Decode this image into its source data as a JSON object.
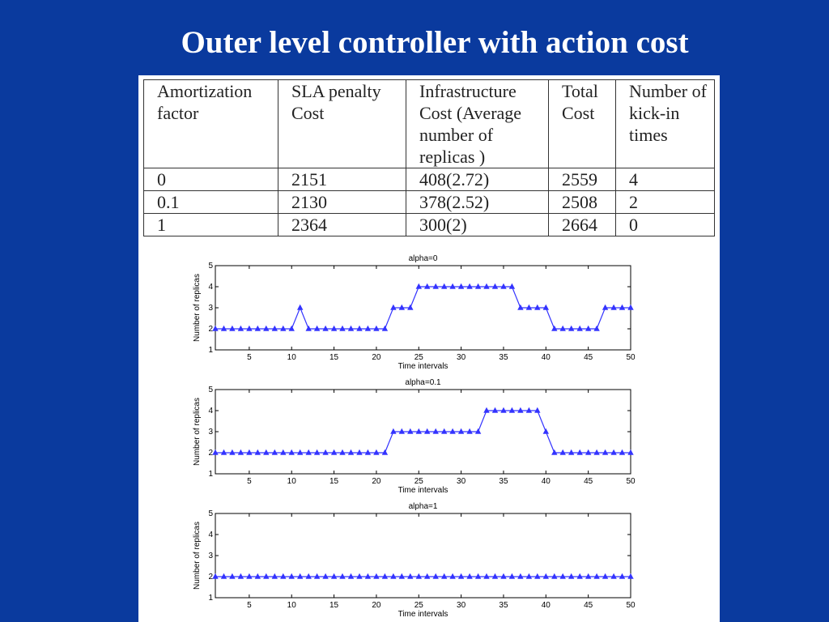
{
  "title": "Outer level controller with action cost",
  "table": {
    "headers": [
      "Amortization factor",
      "SLA penalty Cost",
      "Infrastructure Cost (Average number of replicas )",
      "Total Cost",
      "Number of kick-in times"
    ],
    "rows": [
      [
        "0",
        "2151",
        "408(2.72)",
        "2559",
        "4"
      ],
      [
        "0.1",
        "2130",
        "378(2.52)",
        "2508",
        "2"
      ],
      [
        "1",
        "2364",
        "300(2)",
        "2664",
        "0"
      ]
    ]
  },
  "colors": {
    "background": "#0a3a9e",
    "series": "#3333ff",
    "panel": "#ffffff"
  },
  "chart_data": [
    {
      "type": "line",
      "title": "alpha=0",
      "xlabel": "Time intervals",
      "ylabel": "Number of replicas",
      "xlim": [
        1,
        50
      ],
      "ylim": [
        1,
        5
      ],
      "xticks": [
        5,
        10,
        15,
        20,
        25,
        30,
        35,
        40,
        45,
        50
      ],
      "yticks": [
        1,
        2,
        3,
        4,
        5
      ],
      "marker": "triangle",
      "y": [
        2,
        2,
        2,
        2,
        2,
        2,
        2,
        2,
        2,
        2,
        3,
        2,
        2,
        2,
        2,
        2,
        2,
        2,
        2,
        2,
        2,
        3,
        3,
        3,
        4,
        4,
        4,
        4,
        4,
        4,
        4,
        4,
        4,
        4,
        4,
        4,
        3,
        3,
        3,
        3,
        2,
        2,
        2,
        2,
        2,
        2,
        3,
        3,
        3,
        3
      ]
    },
    {
      "type": "line",
      "title": "alpha=0.1",
      "xlabel": "Time intervals",
      "ylabel": "Number of replicas",
      "xlim": [
        1,
        50
      ],
      "ylim": [
        1,
        5
      ],
      "xticks": [
        5,
        10,
        15,
        20,
        25,
        30,
        35,
        40,
        45,
        50
      ],
      "yticks": [
        1,
        2,
        3,
        4,
        5
      ],
      "marker": "triangle",
      "y": [
        2,
        2,
        2,
        2,
        2,
        2,
        2,
        2,
        2,
        2,
        2,
        2,
        2,
        2,
        2,
        2,
        2,
        2,
        2,
        2,
        2,
        3,
        3,
        3,
        3,
        3,
        3,
        3,
        3,
        3,
        3,
        3,
        4,
        4,
        4,
        4,
        4,
        4,
        4,
        3,
        2,
        2,
        2,
        2,
        2,
        2,
        2,
        2,
        2,
        2
      ]
    },
    {
      "type": "line",
      "title": "alpha=1",
      "xlabel": "Time intervals",
      "ylabel": "Number of replicas",
      "xlim": [
        1,
        50
      ],
      "ylim": [
        1,
        5
      ],
      "xticks": [
        5,
        10,
        15,
        20,
        25,
        30,
        35,
        40,
        45,
        50
      ],
      "yticks": [
        1,
        2,
        3,
        4,
        5
      ],
      "marker": "triangle",
      "y": [
        2,
        2,
        2,
        2,
        2,
        2,
        2,
        2,
        2,
        2,
        2,
        2,
        2,
        2,
        2,
        2,
        2,
        2,
        2,
        2,
        2,
        2,
        2,
        2,
        2,
        2,
        2,
        2,
        2,
        2,
        2,
        2,
        2,
        2,
        2,
        2,
        2,
        2,
        2,
        2,
        2,
        2,
        2,
        2,
        2,
        2,
        2,
        2,
        2,
        2
      ]
    }
  ]
}
